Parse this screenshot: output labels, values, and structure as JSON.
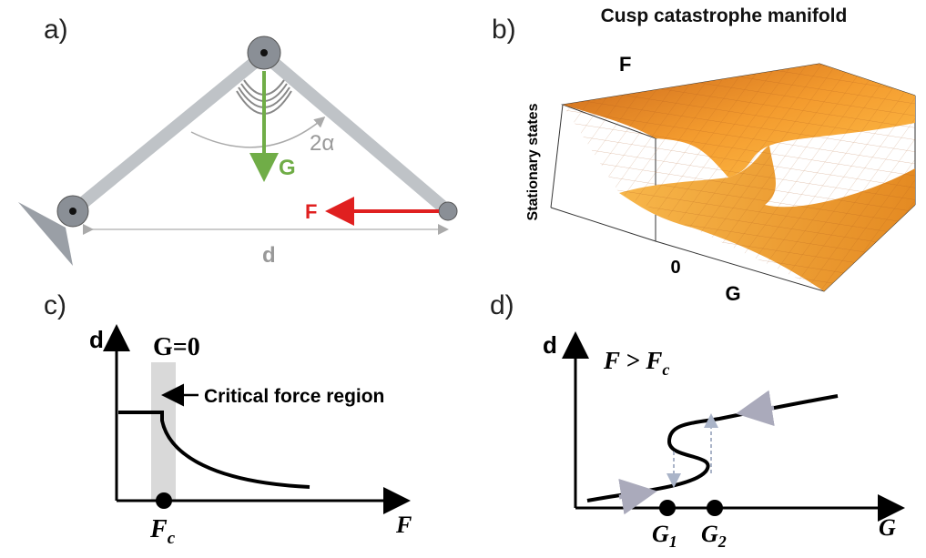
{
  "panels": [
    {
      "label": "a)",
      "gravity": "G",
      "angle": "2α",
      "force": "F",
      "distance": "d"
    },
    {
      "label": "b)",
      "title": "Cusp catastrophe manifold",
      "axis_f": "F",
      "axis_states": "Stationary states",
      "axis_zero": "0",
      "axis_g": "G"
    },
    {
      "label": "c)",
      "y_axis": "d",
      "x_axis": "F",
      "region_title": "G=0",
      "annotation": "Critical force region",
      "critical_point": {
        "main": "F",
        "sub": "c"
      }
    },
    {
      "label": "d)",
      "y_axis": "d",
      "x_axis": "G",
      "condition": {
        "main": "F > F",
        "sub": "c"
      },
      "points": [
        {
          "main": "G",
          "sub": "1"
        },
        {
          "main": "G",
          "sub": "2"
        }
      ]
    }
  ]
}
